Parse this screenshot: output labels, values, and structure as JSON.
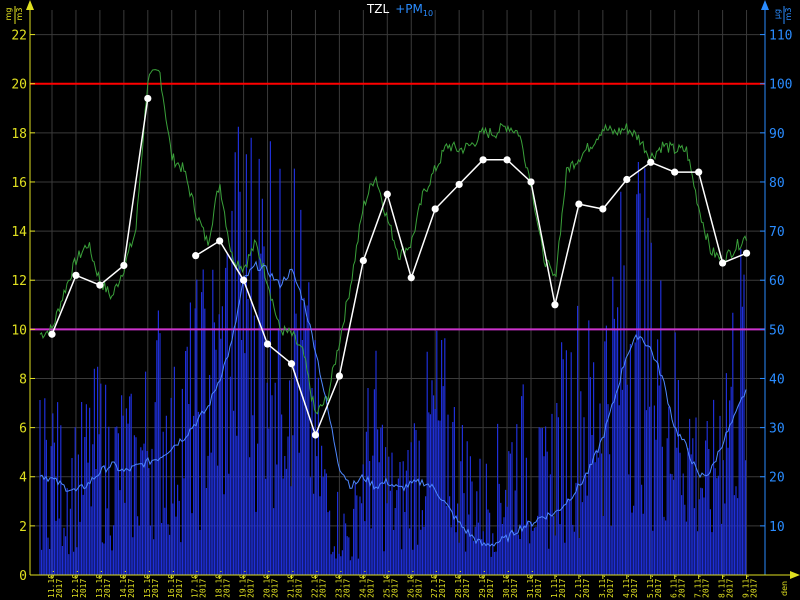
{
  "title": {
    "main": "TZL",
    "secondary": "+PM",
    "secondary_sub": "10"
  },
  "colors": {
    "background": "#000000",
    "grid": "#3a3a3a",
    "left_axis": "#e0e020",
    "right_axis": "#2a8cff",
    "limit_red": "#ff0000",
    "limit_magenta": "#cc33cc",
    "tzl_raw": "#3aa03a",
    "tzl_daily": "#ffffff",
    "pm10_raw": "#1f2fd6",
    "pm10_avg": "#4f88ff"
  },
  "chart_data": {
    "type": "line",
    "left_axis": {
      "unit_num": "mg",
      "unit_den": "m3",
      "ylim": [
        0,
        23
      ],
      "ticks": [
        0,
        2,
        4,
        6,
        8,
        10,
        12,
        14,
        16,
        18,
        20,
        22
      ]
    },
    "right_axis": {
      "unit_num": "µg",
      "unit_den": "m3",
      "ylim": [
        0,
        115
      ],
      "ticks": [
        10,
        20,
        30,
        40,
        50,
        60,
        70,
        80,
        90,
        100,
        110
      ]
    },
    "x_unit": "den",
    "x_ticks": [
      "11.10. 2017",
      "12.10. 2017",
      "13.10. 2017",
      "14.10. 2017",
      "15.10. 2017",
      "16.10. 2017",
      "17.10. 2017",
      "18.10. 2017",
      "19.10. 2017",
      "20.10. 2017",
      "21.10. 2017",
      "22.10. 2017",
      "23.10. 2017",
      "24.10. 2017",
      "25.10. 2017",
      "26.10. 2017",
      "27.10. 2017",
      "28.10. 2017",
      "29.10. 2017",
      "30.10. 2017",
      "31.10. 2017",
      "1.11. 2017",
      "2.11. 2017",
      "3.11. 2017",
      "4.11. 2017",
      "5.11. 2017",
      "6.11. 2017",
      "7.11. 2017",
      "8.11. 2017",
      "9.11. 2017"
    ],
    "limits": [
      {
        "axis": "left",
        "value": 20,
        "color": "#ff0000"
      },
      {
        "axis": "left",
        "value": 10,
        "color": "#cc33cc"
      }
    ],
    "grid": true,
    "series": [
      {
        "name": "TZL",
        "axis": "left",
        "style": "line-markers",
        "x": [
          0,
          1,
          2,
          3,
          4,
          6,
          7,
          8,
          9,
          10,
          11,
          12,
          13,
          14,
          15,
          16,
          17,
          18,
          19,
          20,
          21,
          22,
          23,
          24,
          25,
          26,
          27,
          28,
          29
        ],
        "values": [
          9.8,
          12.2,
          11.8,
          12.6,
          19.4,
          13.0,
          13.6,
          12.0,
          9.4,
          8.6,
          5.7,
          8.1,
          12.8,
          15.5,
          12.1,
          14.9,
          15.9,
          16.9,
          16.9,
          16.0,
          11.0,
          15.1,
          14.9,
          16.1,
          16.8,
          16.4,
          16.4,
          12.7,
          13.1
        ]
      },
      {
        "name": "TZL raw",
        "axis": "left",
        "style": "noisy-line",
        "x": [
          -0.5,
          0,
          0.5,
          1,
          1.5,
          2,
          2.5,
          3,
          3.5,
          4,
          4.5,
          5,
          5.5,
          6,
          6.5,
          7,
          7.5,
          8,
          8.5,
          9,
          9.5,
          10,
          10.5,
          11,
          11.5,
          12,
          12.5,
          13,
          13.5,
          14,
          14.5,
          15,
          15.5,
          16,
          16.5,
          17,
          17.5,
          18,
          18.5,
          19,
          19.5,
          20,
          20.5,
          21,
          21.5,
          22,
          22.5,
          23,
          23.5,
          24,
          24.5,
          25,
          25.5,
          26,
          26.5,
          27,
          27.5,
          28,
          28.5,
          29
        ],
        "values": [
          9.8,
          10.0,
          11.5,
          12.8,
          13.5,
          12.0,
          11.3,
          12.5,
          14.0,
          20.2,
          20.5,
          17.0,
          16.5,
          14.8,
          13.5,
          16.0,
          13.0,
          12.5,
          13.5,
          12.0,
          10.0,
          9.8,
          9.0,
          6.5,
          7.2,
          9.5,
          12.0,
          15.0,
          16.3,
          14.5,
          13.0,
          13.5,
          15.5,
          16.5,
          17.5,
          17.3,
          17.5,
          18.0,
          18.0,
          18.3,
          18.0,
          16.0,
          13.0,
          12.0,
          16.5,
          17.0,
          17.5,
          18.2,
          18.0,
          18.2,
          17.8,
          17.0,
          17.5,
          17.3,
          17.3,
          15.0,
          13.2,
          12.8,
          13.3,
          13.8
        ]
      },
      {
        "name": "PM10",
        "axis": "right",
        "style": "line",
        "x": [
          -0.5,
          0,
          0.5,
          1,
          1.5,
          2,
          2.5,
          3,
          3.5,
          4,
          4.5,
          5,
          5.5,
          6,
          6.5,
          7,
          7.5,
          8,
          8.5,
          9,
          9.5,
          10,
          10.5,
          11,
          11.5,
          12,
          12.5,
          13,
          13.5,
          14,
          14.5,
          15,
          15.5,
          16,
          16.5,
          17,
          17.5,
          18,
          18.5,
          19,
          19.5,
          20,
          20.5,
          21,
          21.5,
          22,
          22.5,
          23,
          23.5,
          24,
          24.5,
          25,
          25.5,
          26,
          26.5,
          27,
          27.5,
          28,
          28.5,
          29
        ],
        "values": [
          20.5,
          19.5,
          18.0,
          17.0,
          18.5,
          21.0,
          22.5,
          21.0,
          22.0,
          23.0,
          24.0,
          26.0,
          28.0,
          31.0,
          34.0,
          40.0,
          47.0,
          60.0,
          63.0,
          62.0,
          59.0,
          62.0,
          56.0,
          46.0,
          34.0,
          22.0,
          18.0,
          20.0,
          18.0,
          19.0,
          17.5,
          18.5,
          19.0,
          17.5,
          14.0,
          10.5,
          8.0,
          6.0,
          6.5,
          7.5,
          9.5,
          10.5,
          12.0,
          12.5,
          15.0,
          18.0,
          22.0,
          28.0,
          36.0,
          45.0,
          49.0,
          46.0,
          40.0,
          30.0,
          26.0,
          20.0,
          21.0,
          27.0,
          32.0,
          38.0
        ]
      },
      {
        "name": "PM10 raw",
        "axis": "right",
        "style": "noisy-bars",
        "x": [
          -0.5,
          0,
          0.5,
          1,
          1.5,
          2,
          2.5,
          3,
          3.5,
          4,
          4.5,
          5,
          5.5,
          6,
          6.5,
          7,
          7.5,
          8,
          8.5,
          9,
          9.5,
          10,
          10.5,
          11,
          11.5,
          12,
          12.5,
          13,
          13.5,
          14,
          14.5,
          15,
          15.5,
          16,
          16.5,
          17,
          17.5,
          18,
          18.5,
          19,
          19.5,
          20,
          20.5,
          21,
          21.5,
          22,
          22.5,
          23,
          23.5,
          24,
          24.5,
          25,
          25.5,
          26,
          26.5,
          27,
          27.5,
          28,
          28.5,
          29
        ],
        "values": [
          30,
          35,
          25,
          28,
          32,
          38,
          30,
          35,
          30,
          40,
          50,
          35,
          45,
          50,
          60,
          55,
          75,
          85,
          80,
          90,
          70,
          85,
          60,
          40,
          20,
          15,
          10,
          30,
          40,
          25,
          20,
          30,
          35,
          45,
          40,
          30,
          25,
          20,
          25,
          30,
          35,
          30,
          25,
          35,
          45,
          50,
          45,
          55,
          60,
          75,
          80,
          60,
          55,
          45,
          40,
          30,
          25,
          45,
          55,
          65
        ]
      }
    ]
  }
}
